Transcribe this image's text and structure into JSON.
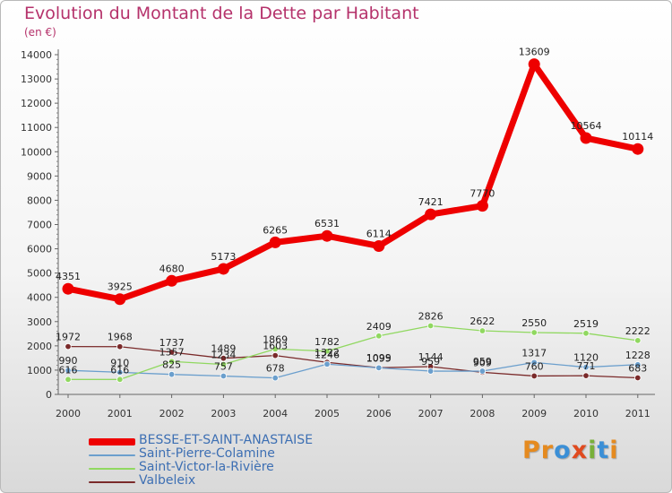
{
  "title": "Evolution du Montant de la Dette par Habitant",
  "unit_label": "(en €)",
  "logo": {
    "text": "Proxiti",
    "letters": [
      {
        "ch": "P",
        "color": "#e58a1f"
      },
      {
        "ch": "r",
        "color": "#e58a1f"
      },
      {
        "ch": "o",
        "color": "#3b8fd6"
      },
      {
        "ch": "x",
        "color": "#e04a1f"
      },
      {
        "ch": "i",
        "color": "#78b03a"
      },
      {
        "ch": "t",
        "color": "#3b8fd6"
      },
      {
        "ch": "i",
        "color": "#e58a1f"
      }
    ]
  },
  "chart_data": {
    "type": "line",
    "title": "Evolution du Montant de la Dette par Habitant",
    "ylabel": "(en €)",
    "xlabel": "",
    "ylim": [
      0,
      14000
    ],
    "yticks": [
      0,
      1000,
      2000,
      3000,
      4000,
      5000,
      6000,
      7000,
      8000,
      9000,
      10000,
      11000,
      12000,
      13000,
      14000
    ],
    "grid": false,
    "legend_position": "bottom-left",
    "categories": [
      "2000",
      "2001",
      "2002",
      "2003",
      "2004",
      "2005",
      "2006",
      "2007",
      "2008",
      "2009",
      "2010",
      "2011"
    ],
    "series": [
      {
        "name": "BESSE-ET-SAINT-ANASTAISE",
        "color": "#ee0000",
        "values": [
          4351,
          3925,
          4680,
          5173,
          6265,
          6531,
          6114,
          7421,
          7770,
          13609,
          10564,
          10114
        ]
      },
      {
        "name": "Saint-Pierre-Colamine",
        "color": "#6b9fcd",
        "values": [
          990,
          910,
          825,
          757,
          678,
          1246,
          1095,
          959,
          959,
          1317,
          1120,
          1228
        ]
      },
      {
        "name": "Saint-Victor-la-Rivière",
        "color": "#90d860",
        "values": [
          616,
          616,
          1357,
          1234,
          1869,
          1782,
          2409,
          2826,
          2622,
          2550,
          2519,
          2222
        ]
      },
      {
        "name": "Valbeleix",
        "color": "#7a2a2a",
        "values": [
          1972,
          1968,
          1737,
          1489,
          1603,
          1322,
          1099,
          1144,
          909,
          760,
          771,
          683
        ]
      }
    ]
  }
}
